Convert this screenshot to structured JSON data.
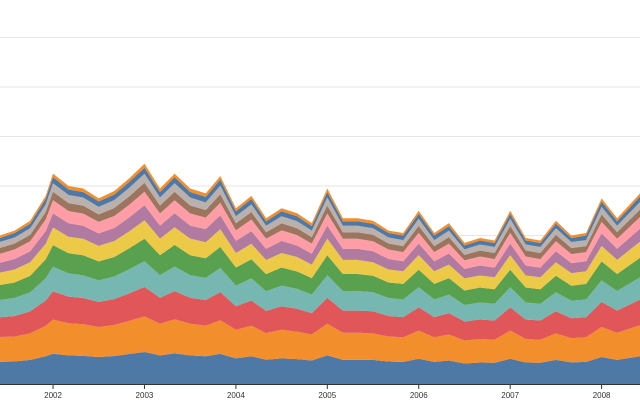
{
  "chart_data": {
    "type": "area",
    "stacked": true,
    "title": "",
    "xlabel": "",
    "ylabel": "",
    "grid": true,
    "x_ticks": [
      "2002",
      "2003",
      "2004",
      "2005",
      "2006",
      "2007",
      "2008"
    ],
    "xlim": [
      2001.42,
      2008.42
    ],
    "ylim": [
      0,
      7
    ],
    "y_gridlines": [
      1,
      2,
      3,
      4,
      5,
      6,
      7
    ],
    "x": [
      2001.42,
      2001.58,
      2001.75,
      2001.92,
      2002.0,
      2002.17,
      2002.33,
      2002.5,
      2002.67,
      2002.83,
      2003.0,
      2003.17,
      2003.33,
      2003.5,
      2003.67,
      2003.83,
      2004.0,
      2004.17,
      2004.33,
      2004.5,
      2004.67,
      2004.83,
      2005.0,
      2005.17,
      2005.33,
      2005.5,
      2005.67,
      2005.83,
      2006.0,
      2006.17,
      2006.33,
      2006.5,
      2006.67,
      2006.83,
      2007.0,
      2007.17,
      2007.33,
      2007.5,
      2007.67,
      2007.83,
      2008.0,
      2008.17,
      2008.42
    ],
    "totals": [
      3.0,
      3.1,
      3.3,
      3.8,
      4.25,
      4.0,
      3.95,
      3.75,
      3.9,
      4.15,
      4.45,
      3.95,
      4.25,
      3.95,
      3.85,
      4.2,
      3.55,
      3.8,
      3.35,
      3.55,
      3.45,
      3.25,
      3.95,
      3.35,
      3.35,
      3.3,
      3.1,
      3.05,
      3.5,
      3.05,
      3.25,
      2.85,
      2.95,
      2.9,
      3.5,
      2.95,
      2.9,
      3.3,
      3.0,
      3.05,
      3.75,
      3.35,
      3.85
    ],
    "series": [
      {
        "color": "#4e79a7",
        "values": [
          0.45,
          0.45,
          0.48,
          0.55,
          0.6,
          0.57,
          0.56,
          0.54,
          0.56,
          0.6,
          0.64,
          0.57,
          0.61,
          0.57,
          0.55,
          0.6,
          0.51,
          0.55,
          0.48,
          0.51,
          0.5,
          0.47,
          0.57,
          0.48,
          0.48,
          0.48,
          0.45,
          0.44,
          0.5,
          0.44,
          0.47,
          0.41,
          0.43,
          0.42,
          0.5,
          0.43,
          0.42,
          0.48,
          0.43,
          0.44,
          0.54,
          0.48,
          0.55
        ]
      },
      {
        "color": "#f28e2b",
        "values": [
          0.5,
          0.5,
          0.53,
          0.61,
          0.68,
          0.64,
          0.63,
          0.6,
          0.62,
          0.66,
          0.71,
          0.63,
          0.68,
          0.63,
          0.61,
          0.67,
          0.57,
          0.61,
          0.53,
          0.57,
          0.55,
          0.52,
          0.63,
          0.54,
          0.54,
          0.53,
          0.5,
          0.49,
          0.56,
          0.49,
          0.52,
          0.46,
          0.47,
          0.46,
          0.56,
          0.47,
          0.46,
          0.53,
          0.48,
          0.49,
          0.6,
          0.54,
          0.62
        ]
      },
      {
        "color": "#e15759",
        "values": [
          0.4,
          0.41,
          0.44,
          0.5,
          0.56,
          0.53,
          0.52,
          0.5,
          0.52,
          0.55,
          0.59,
          0.52,
          0.56,
          0.52,
          0.51,
          0.56,
          0.47,
          0.5,
          0.44,
          0.47,
          0.46,
          0.43,
          0.52,
          0.44,
          0.44,
          0.44,
          0.41,
          0.4,
          0.46,
          0.4,
          0.43,
          0.38,
          0.39,
          0.38,
          0.46,
          0.39,
          0.38,
          0.44,
          0.4,
          0.4,
          0.5,
          0.44,
          0.51
        ]
      },
      {
        "color": "#76b7b2",
        "values": [
          0.35,
          0.36,
          0.38,
          0.44,
          0.49,
          0.46,
          0.45,
          0.43,
          0.45,
          0.48,
          0.51,
          0.45,
          0.49,
          0.45,
          0.44,
          0.48,
          0.41,
          0.44,
          0.39,
          0.41,
          0.4,
          0.37,
          0.45,
          0.39,
          0.39,
          0.38,
          0.36,
          0.35,
          0.4,
          0.35,
          0.37,
          0.33,
          0.34,
          0.33,
          0.4,
          0.34,
          0.33,
          0.38,
          0.35,
          0.35,
          0.43,
          0.39,
          0.44
        ]
      },
      {
        "color": "#59a14f",
        "values": [
          0.3,
          0.31,
          0.33,
          0.38,
          0.43,
          0.4,
          0.4,
          0.38,
          0.39,
          0.42,
          0.45,
          0.4,
          0.43,
          0.4,
          0.39,
          0.42,
          0.36,
          0.38,
          0.34,
          0.36,
          0.35,
          0.33,
          0.4,
          0.34,
          0.34,
          0.33,
          0.31,
          0.31,
          0.35,
          0.31,
          0.33,
          0.29,
          0.3,
          0.29,
          0.35,
          0.3,
          0.29,
          0.33,
          0.3,
          0.31,
          0.38,
          0.34,
          0.39
        ]
      },
      {
        "color": "#edc948",
        "values": [
          0.25,
          0.26,
          0.27,
          0.31,
          0.35,
          0.33,
          0.33,
          0.31,
          0.32,
          0.34,
          0.37,
          0.33,
          0.35,
          0.33,
          0.32,
          0.35,
          0.29,
          0.31,
          0.28,
          0.29,
          0.29,
          0.27,
          0.33,
          0.28,
          0.28,
          0.27,
          0.26,
          0.25,
          0.29,
          0.25,
          0.27,
          0.24,
          0.24,
          0.24,
          0.29,
          0.24,
          0.24,
          0.27,
          0.25,
          0.25,
          0.31,
          0.28,
          0.32
        ]
      },
      {
        "color": "#b07aa1",
        "values": [
          0.2,
          0.21,
          0.22,
          0.25,
          0.28,
          0.27,
          0.26,
          0.25,
          0.26,
          0.28,
          0.3,
          0.26,
          0.28,
          0.26,
          0.26,
          0.28,
          0.24,
          0.25,
          0.22,
          0.24,
          0.23,
          0.22,
          0.26,
          0.22,
          0.22,
          0.22,
          0.21,
          0.2,
          0.23,
          0.2,
          0.22,
          0.19,
          0.2,
          0.19,
          0.23,
          0.2,
          0.19,
          0.22,
          0.2,
          0.2,
          0.25,
          0.22,
          0.26
        ]
      },
      {
        "color": "#ff9da7",
        "values": [
          0.18,
          0.19,
          0.2,
          0.23,
          0.26,
          0.24,
          0.24,
          0.23,
          0.24,
          0.25,
          0.27,
          0.24,
          0.26,
          0.24,
          0.23,
          0.25,
          0.21,
          0.23,
          0.2,
          0.21,
          0.21,
          0.2,
          0.24,
          0.2,
          0.2,
          0.2,
          0.19,
          0.18,
          0.21,
          0.18,
          0.2,
          0.17,
          0.18,
          0.17,
          0.21,
          0.18,
          0.17,
          0.2,
          0.18,
          0.18,
          0.23,
          0.2,
          0.23
        ]
      },
      {
        "color": "#9c755f",
        "values": [
          0.12,
          0.12,
          0.13,
          0.15,
          0.17,
          0.16,
          0.16,
          0.15,
          0.16,
          0.17,
          0.18,
          0.16,
          0.17,
          0.16,
          0.15,
          0.17,
          0.14,
          0.15,
          0.13,
          0.14,
          0.14,
          0.13,
          0.16,
          0.13,
          0.13,
          0.13,
          0.12,
          0.12,
          0.14,
          0.12,
          0.13,
          0.11,
          0.12,
          0.12,
          0.14,
          0.12,
          0.12,
          0.13,
          0.12,
          0.12,
          0.15,
          0.13,
          0.15
        ]
      },
      {
        "color": "#bab0ac",
        "values": [
          0.12,
          0.12,
          0.13,
          0.15,
          0.17,
          0.16,
          0.16,
          0.15,
          0.16,
          0.17,
          0.18,
          0.16,
          0.17,
          0.16,
          0.15,
          0.17,
          0.14,
          0.15,
          0.13,
          0.14,
          0.14,
          0.13,
          0.16,
          0.13,
          0.13,
          0.13,
          0.12,
          0.12,
          0.14,
          0.12,
          0.13,
          0.11,
          0.12,
          0.12,
          0.14,
          0.12,
          0.12,
          0.13,
          0.12,
          0.12,
          0.15,
          0.13,
          0.15
        ]
      },
      {
        "color": "#4e79a7",
        "values": [
          0.08,
          0.09,
          0.09,
          0.11,
          0.12,
          0.11,
          0.11,
          0.11,
          0.11,
          0.12,
          0.12,
          0.11,
          0.12,
          0.11,
          0.11,
          0.12,
          0.1,
          0.11,
          0.09,
          0.1,
          0.1,
          0.09,
          0.11,
          0.09,
          0.09,
          0.09,
          0.09,
          0.09,
          0.1,
          0.09,
          0.09,
          0.08,
          0.08,
          0.08,
          0.1,
          0.08,
          0.08,
          0.09,
          0.08,
          0.09,
          0.11,
          0.09,
          0.11
        ]
      },
      {
        "color": "#f28e2b",
        "values": [
          0.05,
          0.05,
          0.06,
          0.06,
          0.07,
          0.07,
          0.07,
          0.06,
          0.07,
          0.07,
          0.08,
          0.07,
          0.07,
          0.07,
          0.07,
          0.07,
          0.06,
          0.06,
          0.06,
          0.06,
          0.06,
          0.06,
          0.07,
          0.06,
          0.06,
          0.06,
          0.05,
          0.05,
          0.06,
          0.05,
          0.06,
          0.05,
          0.05,
          0.05,
          0.06,
          0.05,
          0.05,
          0.06,
          0.05,
          0.05,
          0.06,
          0.06,
          0.06
        ]
      }
    ]
  }
}
